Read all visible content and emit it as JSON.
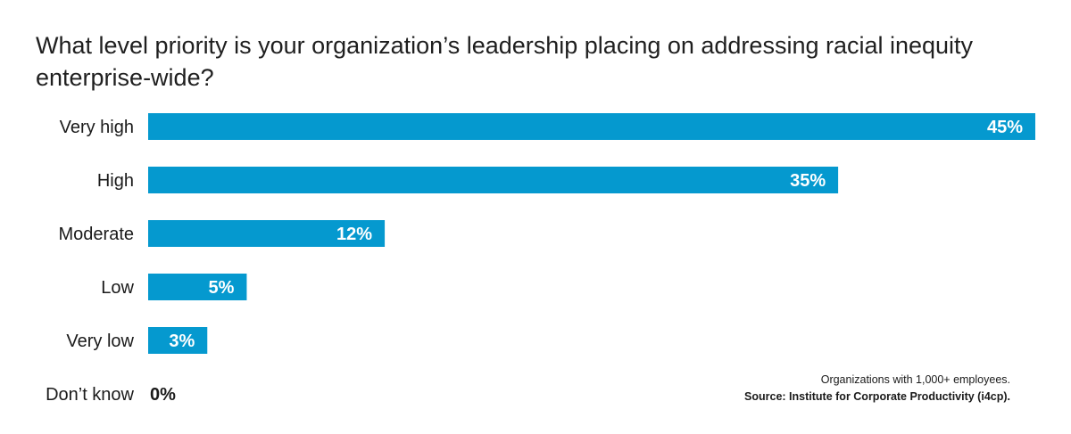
{
  "chart_data": {
    "type": "bar",
    "orientation": "horizontal",
    "title": "What level priority is your organization’s leadership placing on addressing racial inequity enterprise-wide?",
    "categories": [
      "Very high",
      "High",
      "Moderate",
      "Low",
      "Very low",
      "Don’t know"
    ],
    "values": [
      45,
      35,
      12,
      5,
      3,
      0
    ],
    "data_labels": [
      "45%",
      "35%",
      "12%",
      "5%",
      "3%",
      "0%"
    ],
    "unit": "%",
    "xlim": [
      0,
      45
    ],
    "grid": false,
    "legend": "none",
    "bar_color": "#0599cf",
    "label_inside_color": "#ffffff",
    "label_outside_color": "#1a1a1a"
  },
  "footnote": {
    "line1": "Organizations with 1,000+ employees.",
    "line2": "Source: Institute for Corporate Productivity (i4cp)."
  }
}
